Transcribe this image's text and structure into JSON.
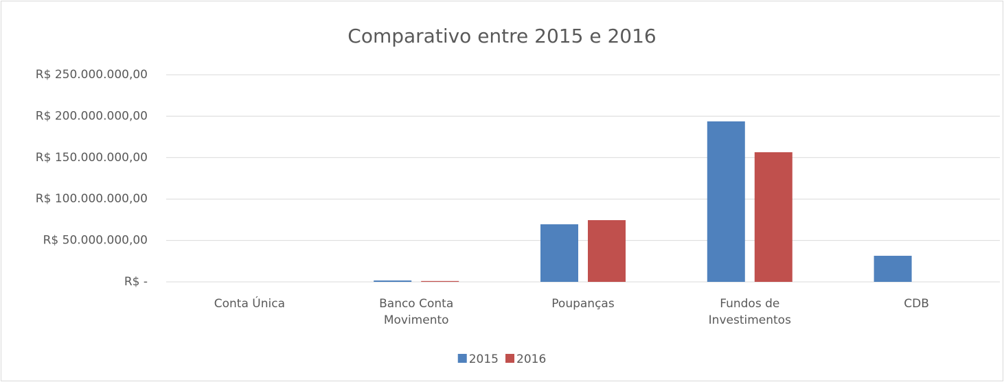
{
  "chart_data": {
    "type": "bar",
    "title": "Comparativo entre 2015 e 2016",
    "categories": [
      "Conta Única",
      "Banco Conta Movimento",
      "Poupanças",
      "Fundos de Investimentos",
      "CDB"
    ],
    "series": [
      {
        "name": "2015",
        "color": "#4f81bd",
        "values": [
          0,
          1700000,
          69500000,
          193700000,
          31500000
        ]
      },
      {
        "name": "2016",
        "color": "#c0504d",
        "values": [
          0,
          1000000,
          74500000,
          156500000,
          0
        ]
      }
    ],
    "ylim": [
      0,
      250000000
    ],
    "yticks": [
      {
        "value": 0,
        "label": "R$ -"
      },
      {
        "value": 50000000,
        "label": "R$ 50.000.000,00"
      },
      {
        "value": 100000000,
        "label": "R$ 100.000.000,00"
      },
      {
        "value": 150000000,
        "label": "R$ 150.000.000,00"
      },
      {
        "value": 200000000,
        "label": "R$ 200.000.000,00"
      },
      {
        "value": 250000000,
        "label": "R$ 250.000.000,00"
      }
    ],
    "grid": true,
    "legend": "bottom"
  }
}
